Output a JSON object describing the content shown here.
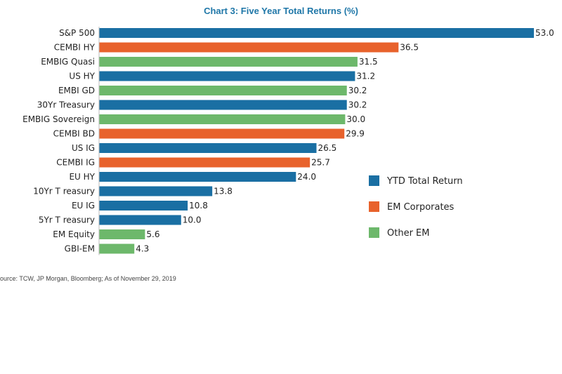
{
  "chart_data": {
    "type": "bar",
    "orientation": "horizontal",
    "title": "Chart 3: Five Year Total Returns (%)",
    "xlabel": "",
    "ylabel": "",
    "xlim": [
      0,
      53.0
    ],
    "grid": false,
    "legend_position": "right",
    "categories": [
      "S&P 500",
      "CEMBI HY",
      "EMBIG Quasi",
      "US HY",
      "EMBI GD",
      "30Yr Treasury",
      "EMBIG Sovereign",
      "CEMBI BD",
      "US IG",
      "CEMBI IG",
      "EU HY",
      "10Yr T reasury",
      "EU IG",
      "5Yr T reasury",
      "EM Equity",
      "GBI-EM"
    ],
    "values": [
      53.0,
      36.5,
      31.5,
      31.2,
      30.2,
      30.2,
      30.0,
      29.9,
      26.5,
      25.7,
      24.0,
      13.8,
      10.8,
      10.0,
      5.6,
      4.3
    ],
    "value_labels": [
      "53.0",
      "36.5",
      "31.5",
      "31.2",
      "30.2",
      "30.2",
      "30.0",
      "29.9",
      "26.5",
      "25.7",
      "24.0",
      "13.8",
      "10.8",
      "10.0",
      "5.6",
      "4.3"
    ],
    "groups": [
      "YTD Total Return",
      "EM Corporates",
      "Other EM",
      "YTD Total Return",
      "Other EM",
      "YTD Total Return",
      "Other EM",
      "EM Corporates",
      "YTD Total Return",
      "EM Corporates",
      "YTD Total Return",
      "YTD Total Return",
      "YTD Total Return",
      "YTD Total Return",
      "Other EM",
      "Other EM"
    ],
    "legend": [
      {
        "name": "YTD Total Return",
        "color": "#1a6fa3"
      },
      {
        "name": "EM Corporates",
        "color": "#e8622c"
      },
      {
        "name": "Other EM",
        "color": "#6db86b"
      }
    ]
  },
  "source": "ource: TCW, JP Morgan, Bloomberg; As of November 29, 2019"
}
